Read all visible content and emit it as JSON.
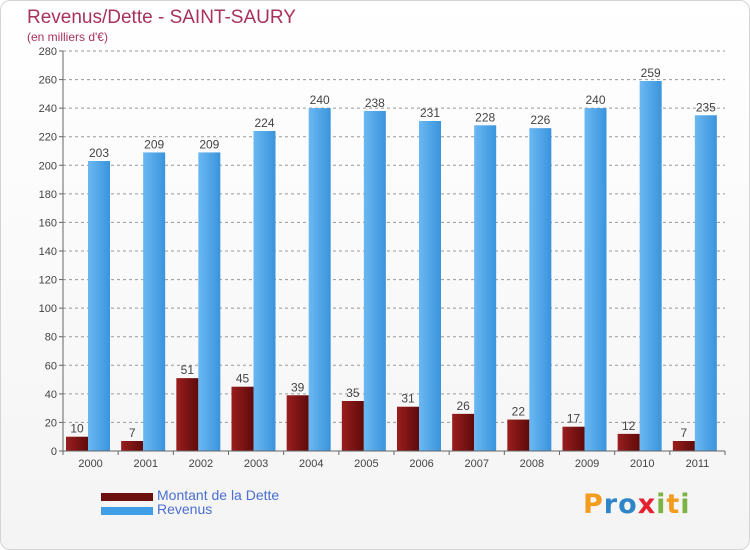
{
  "header": {
    "title": "Revenus/Dette - SAINT-SAURY",
    "subtitle": "(en milliers d'€)"
  },
  "colors": {
    "debt": "#7a1010",
    "debt_light": "#b34040",
    "revenue": "#3f9ee6",
    "revenue_light": "#64b4f0",
    "grid": "#999999",
    "text": "#444444"
  },
  "chart_data": {
    "type": "bar",
    "title": "Revenus/Dette - SAINT-SAURY",
    "ylabel": "(en milliers d'€)",
    "xlabel": "",
    "categories": [
      "2000",
      "2001",
      "2002",
      "2003",
      "2004",
      "2005",
      "2006",
      "2007",
      "2008",
      "2009",
      "2010",
      "2011"
    ],
    "series": [
      {
        "name": "Montant de la Dette",
        "values": [
          10,
          7,
          51,
          45,
          39,
          35,
          31,
          26,
          22,
          17,
          12,
          7
        ]
      },
      {
        "name": "Revenus",
        "values": [
          203,
          209,
          209,
          224,
          240,
          238,
          231,
          228,
          226,
          240,
          259,
          235
        ]
      }
    ],
    "ylim": [
      0,
      280
    ],
    "yticks": [
      0,
      20,
      40,
      60,
      80,
      100,
      120,
      140,
      160,
      180,
      200,
      220,
      240,
      260,
      280
    ],
    "grid": true,
    "legend_position": "bottom-left"
  },
  "legend": {
    "items": [
      {
        "label": "Montant de la Dette"
      },
      {
        "label": "Revenus"
      }
    ]
  },
  "logo": {
    "letters": [
      "P",
      "r",
      "o",
      "x",
      "i",
      "t",
      "i"
    ],
    "letter_colors": [
      "#f29b1c",
      "#2e86c9",
      "#2e86c9",
      "#e5202f",
      "#7cb342",
      "#f29b1c",
      "#7cb342"
    ]
  }
}
